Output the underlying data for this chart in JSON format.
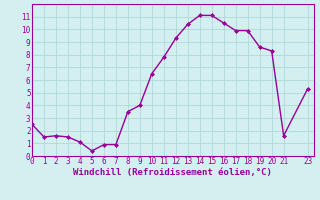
{
  "x": [
    0,
    1,
    2,
    3,
    4,
    5,
    6,
    7,
    8,
    9,
    10,
    11,
    12,
    13,
    14,
    15,
    16,
    17,
    18,
    19,
    20,
    21,
    23
  ],
  "y": [
    2.5,
    1.5,
    1.6,
    1.5,
    1.1,
    0.4,
    0.9,
    0.9,
    3.5,
    4.0,
    6.5,
    7.8,
    9.3,
    10.4,
    11.1,
    11.1,
    10.5,
    9.9,
    9.9,
    8.6,
    8.3,
    1.6,
    5.3
  ],
  "line_color": "#990099",
  "marker": "D",
  "marker_size": 2.0,
  "line_width": 1.0,
  "background_color": "#d4efef",
  "grid_color": "#b0d8d8",
  "xlabel": "Windchill (Refroidissement éolien,°C)",
  "xlabel_color": "#990099",
  "xlabel_fontsize": 6.5,
  "ylim": [
    0,
    12
  ],
  "xlim": [
    0,
    23.5
  ],
  "yticks": [
    0,
    1,
    2,
    3,
    4,
    5,
    6,
    7,
    8,
    9,
    10,
    11
  ],
  "xticks": [
    0,
    1,
    2,
    3,
    4,
    5,
    6,
    7,
    8,
    9,
    10,
    11,
    12,
    13,
    14,
    15,
    16,
    17,
    18,
    19,
    20,
    21,
    23
  ],
  "tick_color": "#990099",
  "tick_fontsize": 5.5,
  "spine_color": "#990099",
  "spine_linewidth": 0.8
}
